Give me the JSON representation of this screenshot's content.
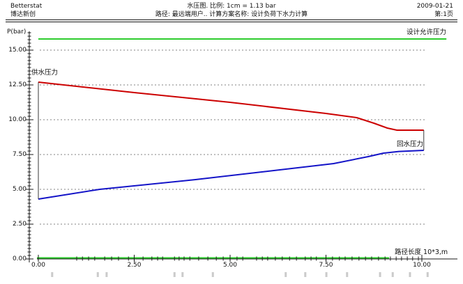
{
  "header": {
    "left": {
      "line1": "Betterstat",
      "line2": "博达新创"
    },
    "center": {
      "line1": "水压图. 比例: 1cm = 1.13 bar",
      "line2": "路径: 最远端用户.. 计算方案名称: 设计负荷下水力计算"
    },
    "right": {
      "line1": "2009-01-21",
      "line2": "第:1页"
    }
  },
  "chart_data": {
    "type": "line",
    "title": "水压图",
    "x_axis": {
      "label": "路径长度 10*3,m",
      "min": 0,
      "max": 10,
      "major_ticks": [
        0,
        2.5,
        5,
        7.5,
        10
      ],
      "tick_decimals": 2
    },
    "y_axis": {
      "label": "P(bar)",
      "min": 0,
      "max": 16.3,
      "major_ticks": [
        0,
        2.5,
        5,
        7.5,
        10,
        12.5,
        15
      ],
      "minor_step": 0.25,
      "tick_decimals": 2
    },
    "legend": "labels drawn next to curves",
    "series": [
      {
        "name": "设计允许压力",
        "color": "#2ecc2e",
        "points": [
          [
            0,
            15.8
          ],
          [
            10.64,
            15.8
          ]
        ]
      },
      {
        "name": "供水压力",
        "color": "#cc0000",
        "points": [
          [
            0,
            12.7
          ],
          [
            2.5,
            11.95
          ],
          [
            5.0,
            11.25
          ],
          [
            7.5,
            10.45
          ],
          [
            8.3,
            10.15
          ],
          [
            8.75,
            9.75
          ],
          [
            9.1,
            9.4
          ],
          [
            9.35,
            9.25
          ],
          [
            10.05,
            9.25
          ]
        ]
      },
      {
        "name": "回水压力",
        "color": "#1414c8",
        "points": [
          [
            0,
            4.3
          ],
          [
            1.6,
            5.0
          ],
          [
            4.1,
            5.7
          ],
          [
            7.7,
            6.85
          ],
          [
            8.6,
            7.35
          ],
          [
            9.0,
            7.6
          ],
          [
            9.4,
            7.72
          ],
          [
            10.05,
            7.8
          ]
        ]
      }
    ],
    "end_connectors": [
      [
        0,
        12.7,
        0,
        4.3
      ],
      [
        10.05,
        9.25,
        10.05,
        7.8
      ]
    ],
    "node_ticks_km": [
      1.0,
      1.15,
      1.31,
      1.47,
      1.73,
      1.91,
      2.09,
      2.35,
      2.73,
      2.96,
      3.11,
      3.24,
      3.55,
      3.67,
      3.8,
      3.95,
      4.18,
      4.42,
      4.64,
      4.82,
      5.18,
      5.33,
      5.69,
      5.84,
      5.98,
      6.18,
      6.36,
      6.55,
      6.73,
      6.96,
      7.11,
      7.25,
      7.67,
      7.85,
      8.0,
      8.18,
      8.36,
      8.53,
      8.69,
      8.87,
      9.04,
      9.18,
      9.33,
      9.47,
      9.62,
      9.76,
      9.91
    ],
    "node_label_marks_km": [
      0.36,
      1.55,
      1.78,
      3.55,
      3.76,
      4.55,
      6.45,
      6.96,
      7.51,
      8.05,
      8.91,
      9.24,
      9.69,
      10.15
    ],
    "colors": {
      "grid": "#808080",
      "axis": "#1a1a1a",
      "axis_highlight": "#2ecc2e",
      "node_marks": "#c2c2c2"
    }
  }
}
